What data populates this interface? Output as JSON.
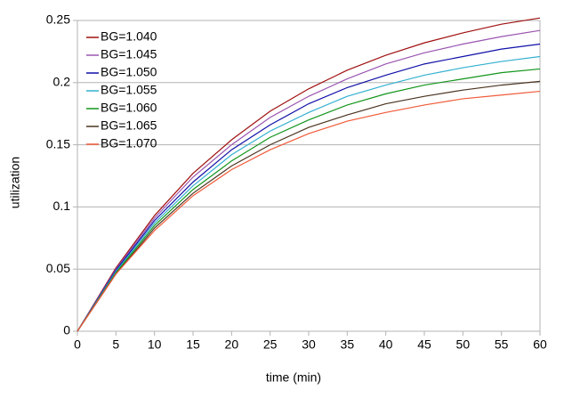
{
  "chart_data": {
    "type": "line",
    "xlabel": "time (min)",
    "ylabel": "utilization",
    "x": [
      0,
      5,
      10,
      15,
      20,
      25,
      30,
      35,
      40,
      45,
      50,
      55,
      60
    ],
    "xlim": [
      0,
      60
    ],
    "xticks": [
      0,
      5,
      10,
      15,
      20,
      25,
      30,
      35,
      40,
      45,
      50,
      55,
      60
    ],
    "ylim": [
      0,
      0.25
    ],
    "yticks": [
      0,
      0.05,
      0.1,
      0.15,
      0.2,
      0.25
    ],
    "grid": true,
    "legend": "upper left",
    "series": [
      {
        "name": "BG=1.040",
        "color": "#a01010",
        "values": [
          0,
          0.051,
          0.093,
          0.127,
          0.154,
          0.177,
          0.195,
          0.21,
          0.222,
          0.232,
          0.24,
          0.247,
          0.252
        ]
      },
      {
        "name": "BG=1.045",
        "color": "#9a55b0",
        "values": [
          0,
          0.05,
          0.091,
          0.124,
          0.15,
          0.172,
          0.189,
          0.203,
          0.215,
          0.224,
          0.231,
          0.237,
          0.242
        ]
      },
      {
        "name": "BG=1.050",
        "color": "#1010a8",
        "values": [
          0,
          0.049,
          0.089,
          0.12,
          0.146,
          0.166,
          0.183,
          0.196,
          0.206,
          0.215,
          0.221,
          0.227,
          0.231
        ]
      },
      {
        "name": "BG=1.055",
        "color": "#33b0d0",
        "values": [
          0,
          0.048,
          0.087,
          0.117,
          0.142,
          0.161,
          0.176,
          0.189,
          0.198,
          0.206,
          0.212,
          0.217,
          0.221
        ]
      },
      {
        "name": "BG=1.060",
        "color": "#12951a",
        "values": [
          0,
          0.047,
          0.085,
          0.114,
          0.137,
          0.156,
          0.17,
          0.182,
          0.191,
          0.198,
          0.203,
          0.208,
          0.211
        ]
      },
      {
        "name": "BG=1.065",
        "color": "#4a3420",
        "values": [
          0,
          0.046,
          0.083,
          0.111,
          0.133,
          0.15,
          0.164,
          0.174,
          0.183,
          0.189,
          0.194,
          0.198,
          0.201
        ]
      },
      {
        "name": "BG=1.070",
        "color": "#f05a38",
        "values": [
          0,
          0.046,
          0.081,
          0.109,
          0.13,
          0.146,
          0.159,
          0.169,
          0.176,
          0.182,
          0.187,
          0.19,
          0.193
        ]
      }
    ]
  }
}
